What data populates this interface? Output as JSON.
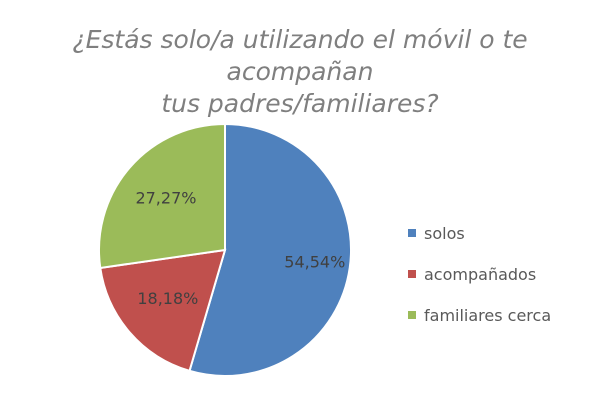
{
  "chart_data": {
    "type": "pie",
    "title_lines": [
      "¿Estás solo/a utilizando el móvil o te acompañan",
      "tus padres/familiares?"
    ],
    "slices": [
      {
        "name": "solos",
        "value": 54.54,
        "label": "54,54%",
        "color": "#4f81bd"
      },
      {
        "name": "acompañados",
        "value": 18.18,
        "label": "18,18%",
        "color": "#c0504d"
      },
      {
        "name": "familiares cerca",
        "value": 27.27,
        "label": "27,27%",
        "color": "#9bbb59"
      }
    ],
    "legend_position": "right"
  }
}
